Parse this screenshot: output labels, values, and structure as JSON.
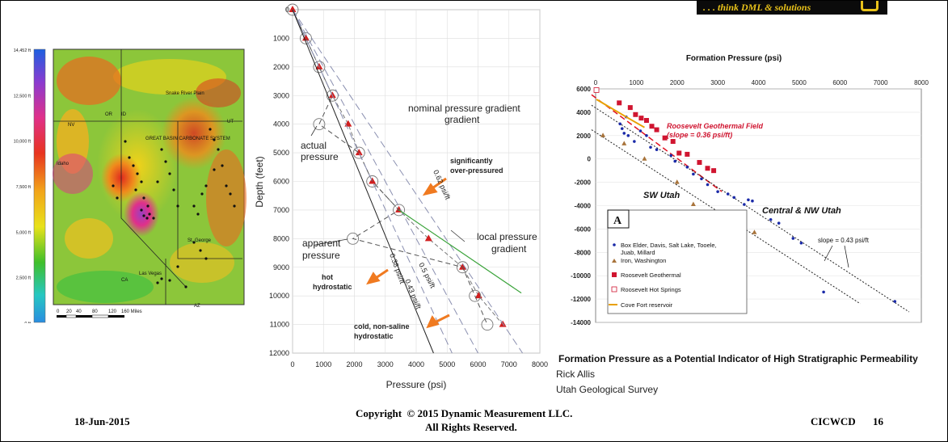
{
  "logo": {
    "text": ". . . think DML & solutions"
  },
  "map": {
    "colorbar_labels": [
      "14,452 ft",
      "12,500 ft",
      "10,000 ft",
      "7,500 ft",
      "5,000 ft",
      "2,500 ft",
      "0 ft"
    ],
    "region_labels": [
      "Snake River Plain",
      "OR",
      "ID",
      "GREAT BASIN CARBONATE SYSTEM",
      "NV",
      "UT",
      "Idaho",
      "AZ",
      "CA",
      "Las Vegas",
      "St. George"
    ],
    "scale_ticks": [
      "0",
      "20",
      "40",
      "80",
      "120",
      "160 Miles"
    ]
  },
  "chart_data": [
    {
      "type": "line",
      "xlabel": "Pressure (psi)",
      "ylabel": "Depth (feet)",
      "xlim": [
        0,
        8000
      ],
      "ylim": [
        12000,
        0
      ],
      "x_ticks": [
        "0",
        "1000",
        "2000",
        "3000",
        "4000",
        "5000",
        "6000",
        "7000",
        "8000"
      ],
      "y_ticks": [
        "0",
        "1000",
        "2000",
        "3000",
        "4000",
        "5000",
        "6000",
        "7000",
        "8000",
        "9000",
        "10000",
        "11000",
        "12000"
      ],
      "grid": true,
      "series": [
        {
          "role": "actual",
          "color": "#d21f1f",
          "points": [
            [
              0,
              0
            ],
            [
              430,
              1000
            ],
            [
              860,
              2000
            ],
            [
              1290,
              3000
            ],
            [
              1800,
              4000
            ],
            [
              2150,
              5000
            ],
            [
              2580,
              6000
            ],
            [
              3440,
              7000
            ],
            [
              4400,
              8000
            ],
            [
              5500,
              9000
            ],
            [
              6020,
              10000
            ],
            [
              6800,
              11000
            ]
          ]
        },
        {
          "role": "apparent",
          "color": "#555555",
          "points": [
            [
              0,
              0
            ],
            [
              430,
              1000
            ],
            [
              860,
              2000
            ],
            [
              1290,
              3000
            ],
            [
              860,
              4000
            ],
            [
              2150,
              5000
            ],
            [
              2580,
              6000
            ],
            [
              3440,
              7000
            ],
            [
              1950,
              8000
            ],
            [
              5500,
              9000
            ],
            [
              5900,
              10000
            ],
            [
              6300,
              11000
            ]
          ]
        },
        {
          "role": "0.62 psi/ft gradient",
          "color": "#8a8fb0",
          "points": [
            [
              0,
              0
            ],
            [
              7440,
              12000
            ]
          ]
        },
        {
          "role": "0.5 psi/ft gradient",
          "color": "#8a8fb0",
          "points": [
            [
              0,
              0
            ],
            [
              6000,
              12000
            ]
          ]
        },
        {
          "role": "0.43 psi/ft gradient",
          "color": "#8a8fb0",
          "points": [
            [
              0,
              0
            ],
            [
              5160,
              12000
            ]
          ]
        },
        {
          "role": "0.38 psi/ft gradient",
          "color": "#222222",
          "points": [
            [
              0,
              0
            ],
            [
              4560,
              12000
            ]
          ]
        },
        {
          "role": "local pressure gradient",
          "color": "#3aa33a",
          "points": [
            [
              3440,
              7000
            ],
            [
              7400,
              9900
            ]
          ]
        }
      ],
      "annotations": [
        "nominal pressure gradient",
        "actual pressure",
        "apparent pressure",
        "significantly over-pressured",
        "local pressure gradient",
        "hot hydrostatic",
        "cold, non-saline hydrostatic",
        "0.62 psi/ft",
        "0.5 psi/ft",
        "0.43 psi/ft",
        "0.38 psi/ft"
      ]
    },
    {
      "type": "scatter",
      "title": "Formation Pressure (psi)",
      "xlim": [
        0,
        8000
      ],
      "ylim": [
        -14000,
        6000
      ],
      "x_ticks": [
        "0",
        "1000",
        "2000",
        "3000",
        "4000",
        "5000",
        "6000",
        "7000",
        "8000"
      ],
      "y_ticks": [
        "6000",
        "4000",
        "2000",
        "0",
        "-2000",
        "-4000",
        "-6000",
        "-8000",
        "-10000",
        "-12000",
        "-14000"
      ],
      "panel_label": "A",
      "annotations": [
        "Roosevelt Geothermal Field",
        "(slope = 0.36 psi/ft)",
        "SW Utah",
        "Central & NW Utah",
        "slope = 0.43 psi/ft"
      ],
      "legend": [
        "Box Elder, Davis, Salt Lake, Tooele, Juab, Millard",
        "Iron, Washington",
        "Roosevelt Geothermal",
        "Roosevelt Hot Springs",
        "Cove Fort reservoir"
      ],
      "series": [
        {
          "legend_index": 0,
          "color": "#1a2aa8",
          "points": [
            [
              600,
              3000
            ],
            [
              650,
              2600
            ],
            [
              700,
              2200
            ],
            [
              750,
              3600
            ],
            [
              800,
              2000
            ],
            [
              950,
              1500
            ],
            [
              1100,
              2400
            ],
            [
              1250,
              2000
            ],
            [
              1350,
              1000
            ],
            [
              1500,
              800
            ],
            [
              1850,
              300
            ],
            [
              1950,
              -200
            ],
            [
              2250,
              -700
            ],
            [
              2400,
              -1300
            ],
            [
              2600,
              -1700
            ],
            [
              2750,
              -2200
            ],
            [
              3000,
              -2800
            ],
            [
              3250,
              -3000
            ],
            [
              3400,
              -3300
            ],
            [
              3650,
              -3900
            ],
            [
              3750,
              -3500
            ],
            [
              3850,
              -3600
            ],
            [
              4300,
              -5200
            ],
            [
              4500,
              -5500
            ],
            [
              4850,
              -6800
            ],
            [
              5050,
              -7200
            ],
            [
              5600,
              -11400
            ],
            [
              7350,
              -12200
            ]
          ]
        },
        {
          "legend_index": 1,
          "color": "#a8733a",
          "points": [
            [
              180,
              2000
            ],
            [
              700,
              1300
            ],
            [
              1200,
              0
            ],
            [
              2000,
              -2000
            ],
            [
              2400,
              -3900
            ],
            [
              3900,
              -6300
            ]
          ]
        },
        {
          "legend_index": 2,
          "color": "#d01530",
          "points": [
            [
              580,
              4800
            ],
            [
              850,
              4400
            ],
            [
              980,
              3800
            ],
            [
              1120,
              3500
            ],
            [
              1250,
              3300
            ],
            [
              1380,
              2800
            ],
            [
              1500,
              2500
            ],
            [
              1700,
              1800
            ],
            [
              1900,
              1500
            ],
            [
              2050,
              500
            ],
            [
              2250,
              400
            ],
            [
              2550,
              -300
            ],
            [
              2750,
              -800
            ],
            [
              2900,
              -1000
            ]
          ]
        },
        {
          "legend_index": 3,
          "color": "#d01530",
          "points": [
            [
              20,
              5900
            ]
          ]
        },
        {
          "legend_index": 4,
          "color": "#e8a000",
          "points": [
            [
              20,
              5100
            ],
            [
              750,
              3600
            ],
            [
              1200,
              2700
            ]
          ]
        }
      ],
      "fits": [
        {
          "role": "Roosevelt 0.36 psi/ft",
          "color": "#e01020",
          "points": [
            [
              -100,
              5500
            ],
            [
              3100,
              -2800
            ]
          ]
        },
        {
          "role": "SW Utah 0.43 psi/ft",
          "color": "#222222",
          "points": [
            [
              -100,
              2500
            ],
            [
              6500,
              -12400
            ]
          ]
        },
        {
          "role": "Central & NW Utah 0.43 psi/ft",
          "color": "#222222",
          "points": [
            [
              -100,
              4600
            ],
            [
              7700,
              -13100
            ]
          ]
        }
      ]
    }
  ],
  "caption": {
    "title": "Formation Pressure as a Potential Indicator of High Stratigraphic Permeability",
    "author": "Rick Allis",
    "org": "Utah Geological Survey"
  },
  "footer": {
    "date": "18-Jun-2015",
    "copyright_line1": "Copyright  © 2015 Dynamic Measurement LLC.",
    "copyright_line2": "All Rights Reserved.",
    "event": "CICWCD",
    "page": "16"
  }
}
